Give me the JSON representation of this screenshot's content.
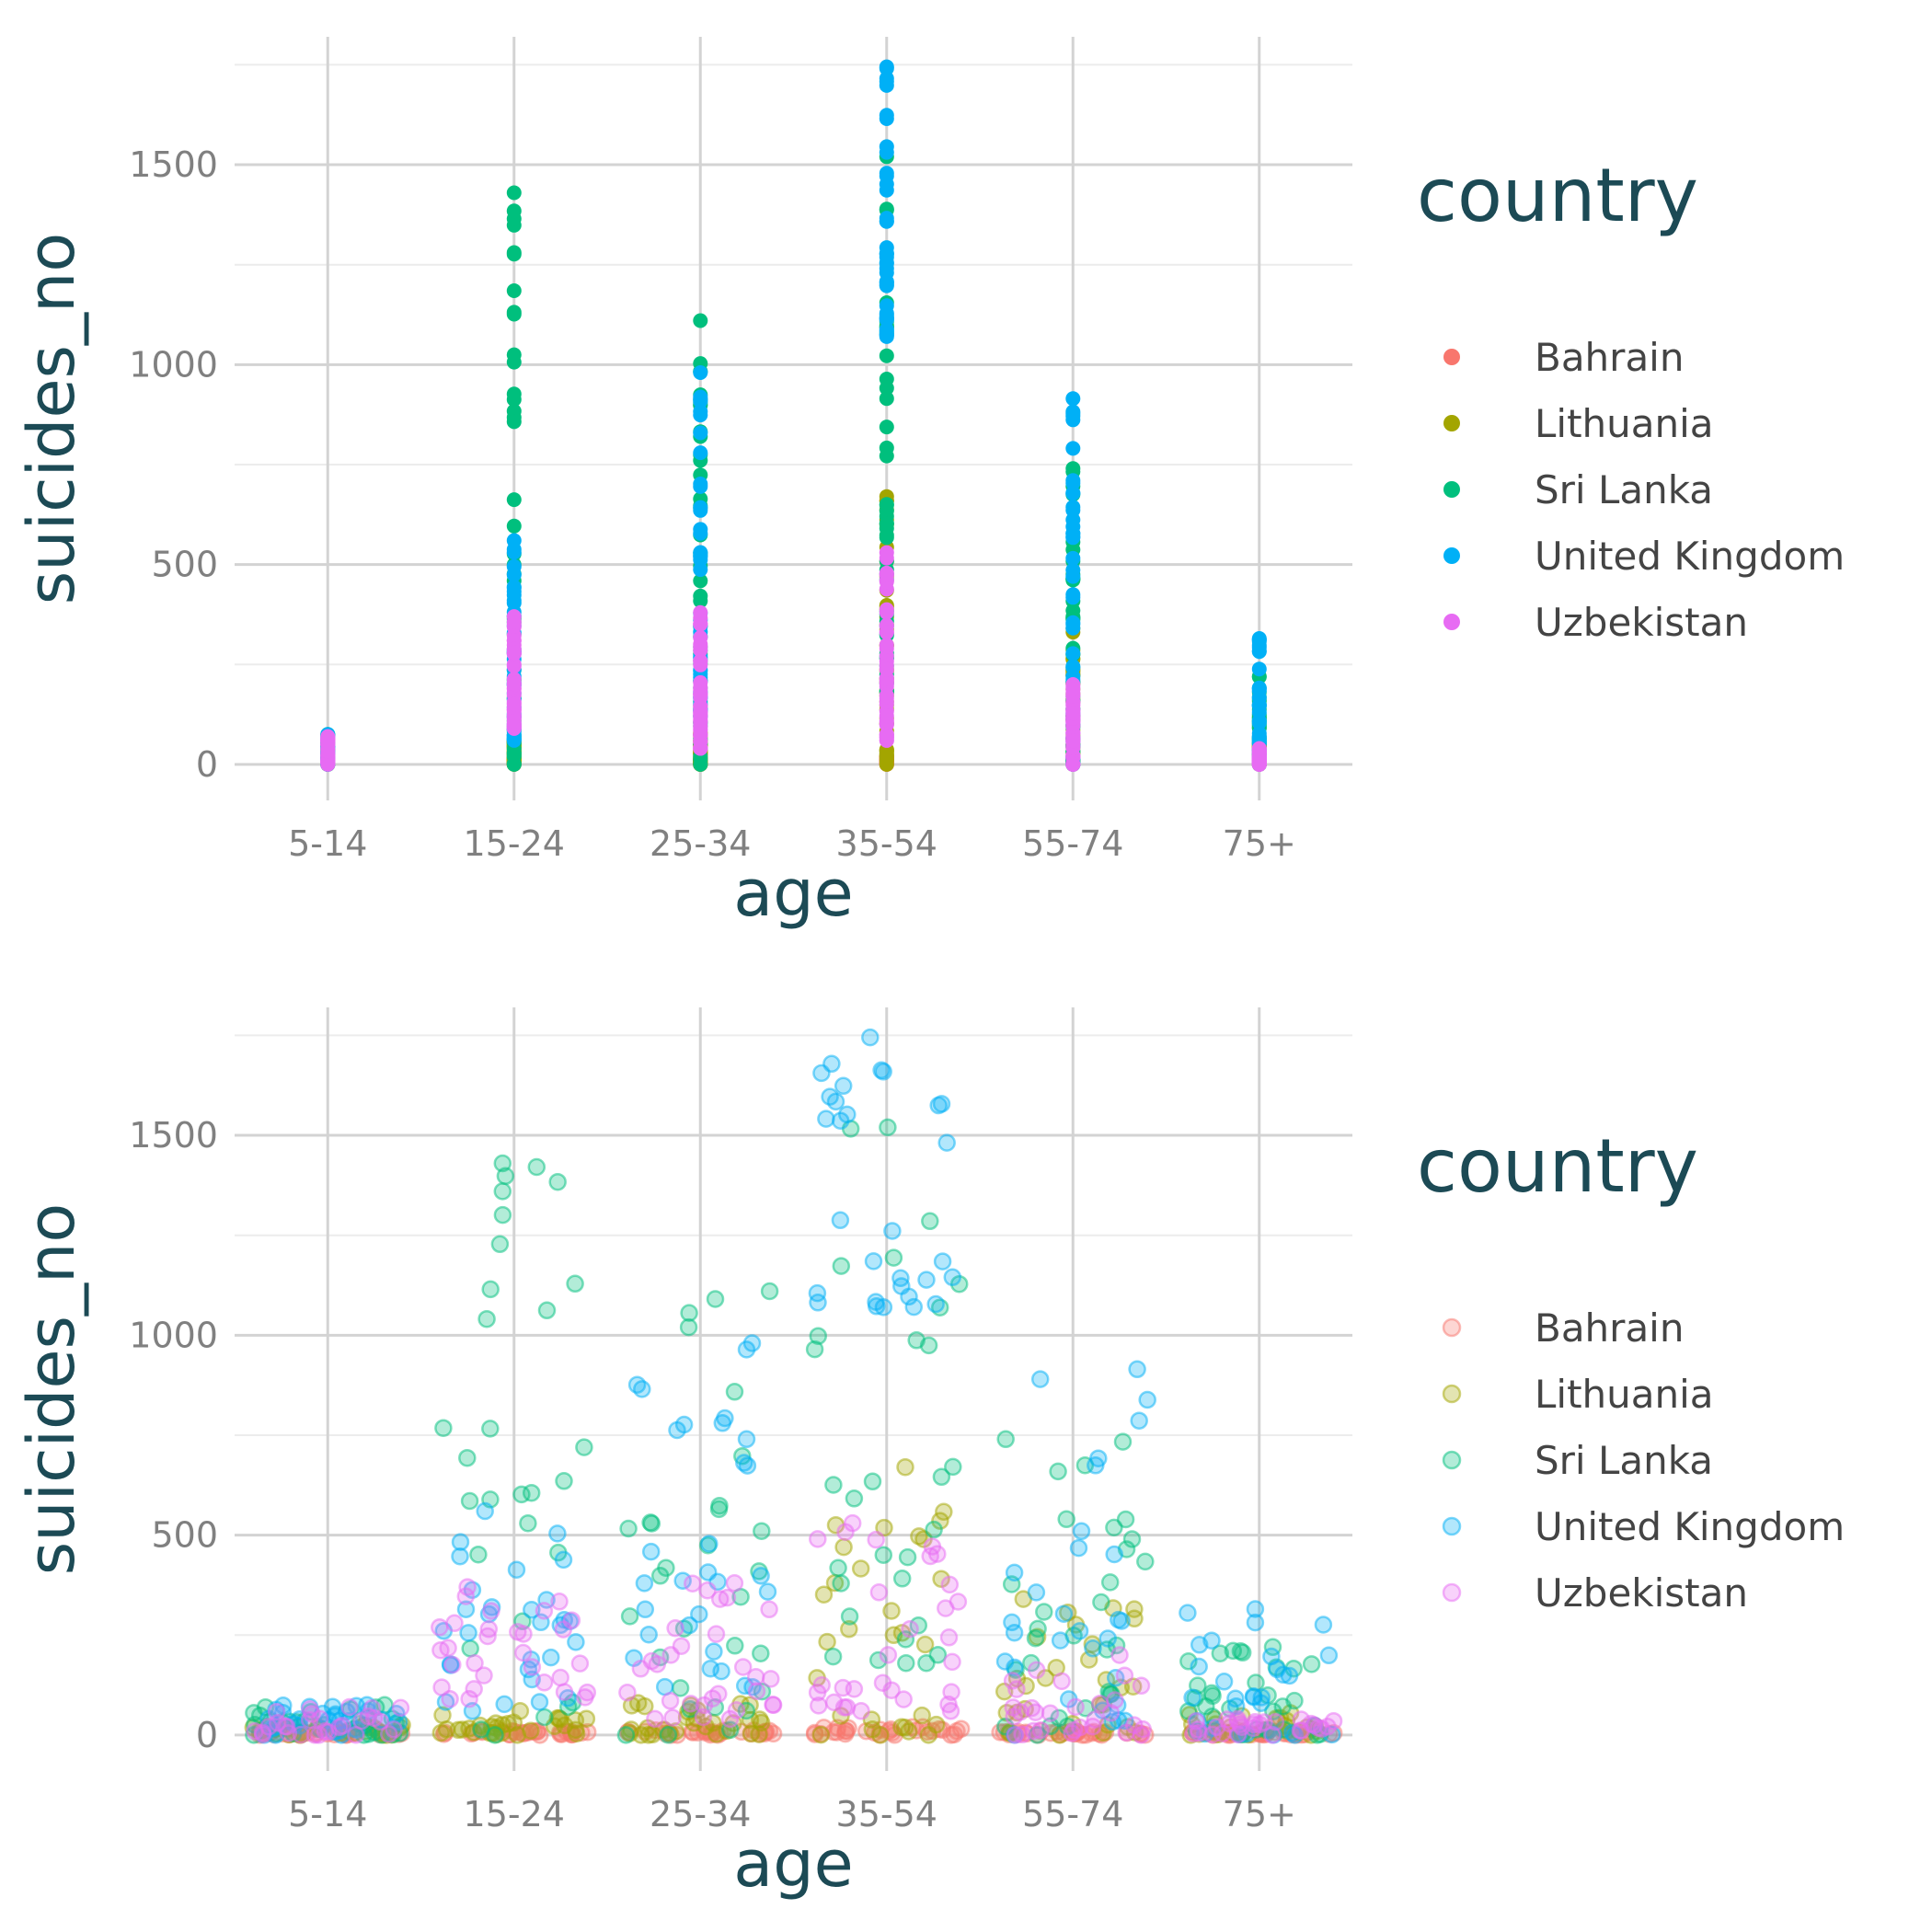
{
  "colors": {
    "Bahrain": "#F8766D",
    "Lithuania": "#A3A500",
    "Sri Lanka": "#00BF7D",
    "United Kingdom": "#00B0F6",
    "Uzbekistan": "#E76BF3",
    "title": "#1c4a55",
    "tick": "#808080",
    "legend_text": "#444444"
  },
  "chart_data": [
    {
      "type": "scatter",
      "variant": "strip",
      "xlabel": "age",
      "ylabel": "suicides_no",
      "categories": [
        "5-14",
        "15-24",
        "25-34",
        "35-54",
        "55-74",
        "75+"
      ],
      "yticks": [
        0,
        500,
        1000,
        1500
      ],
      "ylim": [
        -90,
        1820
      ],
      "grid": true,
      "legend_title": "country",
      "legend_position": "right",
      "point_opacity": 1,
      "series": [
        {
          "name": "Bahrain",
          "ranges": [
            [
              0,
              6
            ],
            [
              0,
              10
            ],
            [
              0,
              12
            ],
            [
              0,
              20
            ],
            [
              0,
              10
            ],
            [
              0,
              8
            ]
          ]
        },
        {
          "name": "Lithuania",
          "ranges": [
            [
              0,
              25
            ],
            [
              0,
              60
            ],
            [
              0,
              80
            ],
            [
              0,
              670
            ],
            [
              0,
              340
            ],
            [
              0,
              55
            ]
          ]
        },
        {
          "name": "Sri Lanka",
          "ranges": [
            [
              0,
              75
            ],
            [
              0,
              1430
            ],
            [
              0,
              1110
            ],
            [
              180,
              1520
            ],
            [
              0,
              740
            ],
            [
              0,
              220
            ]
          ]
        },
        {
          "name": "United Kingdom",
          "ranges": [
            [
              0,
              75
            ],
            [
              60,
              560
            ],
            [
              120,
              980
            ],
            [
              1070,
              1745
            ],
            [
              0,
              915
            ],
            [
              0,
              315
            ]
          ]
        },
        {
          "name": "Uzbekistan",
          "ranges": [
            [
              0,
              70
            ],
            [
              90,
              370
            ],
            [
              40,
              380
            ],
            [
              60,
              530
            ],
            [
              0,
              200
            ],
            [
              0,
              40
            ]
          ]
        }
      ]
    },
    {
      "type": "scatter",
      "variant": "jitter",
      "xlabel": "age",
      "ylabel": "suicides_no",
      "categories": [
        "5-14",
        "15-24",
        "25-34",
        "35-54",
        "55-74",
        "75+"
      ],
      "yticks": [
        0,
        500,
        1000,
        1500
      ],
      "ylim": [
        -90,
        1820
      ],
      "grid": true,
      "legend_title": "country",
      "legend_position": "right",
      "point_opacity": 0.3,
      "series": [
        {
          "name": "Bahrain",
          "ranges": [
            [
              0,
              6
            ],
            [
              0,
              10
            ],
            [
              0,
              12
            ],
            [
              0,
              20
            ],
            [
              0,
              10
            ],
            [
              0,
              8
            ]
          ]
        },
        {
          "name": "Lithuania",
          "ranges": [
            [
              0,
              25
            ],
            [
              0,
              60
            ],
            [
              0,
              80
            ],
            [
              0,
              670
            ],
            [
              0,
              340
            ],
            [
              0,
              55
            ]
          ]
        },
        {
          "name": "Sri Lanka",
          "ranges": [
            [
              0,
              75
            ],
            [
              0,
              1430
            ],
            [
              0,
              1110
            ],
            [
              180,
              1520
            ],
            [
              0,
              740
            ],
            [
              0,
              220
            ]
          ]
        },
        {
          "name": "United Kingdom",
          "ranges": [
            [
              0,
              75
            ],
            [
              60,
              560
            ],
            [
              120,
              980
            ],
            [
              1070,
              1745
            ],
            [
              0,
              915
            ],
            [
              0,
              315
            ]
          ]
        },
        {
          "name": "Uzbekistan",
          "ranges": [
            [
              0,
              70
            ],
            [
              90,
              370
            ],
            [
              40,
              380
            ],
            [
              60,
              530
            ],
            [
              0,
              200
            ],
            [
              0,
              40
            ]
          ]
        }
      ]
    }
  ]
}
